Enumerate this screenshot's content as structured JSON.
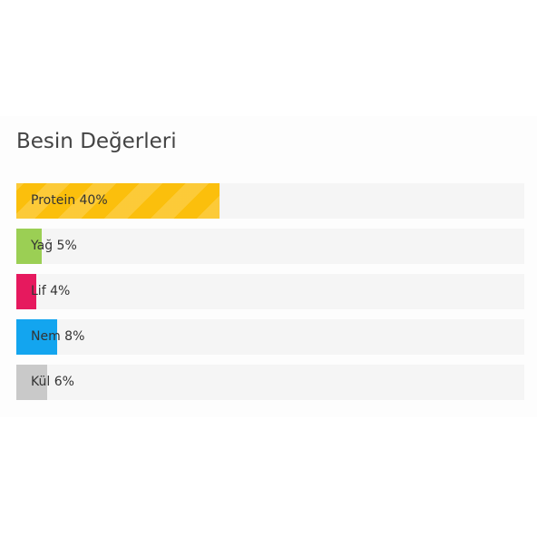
{
  "section": {
    "title": "Besin Değerleri"
  },
  "nutrients": [
    {
      "label": "Protein 40%",
      "percent": 40,
      "color": "#fbbf0c",
      "striped": true
    },
    {
      "label": "Yağ 5%",
      "percent": 5,
      "color": "#9bcf54",
      "striped": false
    },
    {
      "label": "Lif 4%",
      "percent": 4,
      "color": "#e6195e",
      "striped": false
    },
    {
      "label": "Nem 8%",
      "percent": 8,
      "color": "#13a5ef",
      "striped": false
    },
    {
      "label": "Kül 6%",
      "percent": 6,
      "color": "#c9c9c9",
      "striped": false
    }
  ]
}
